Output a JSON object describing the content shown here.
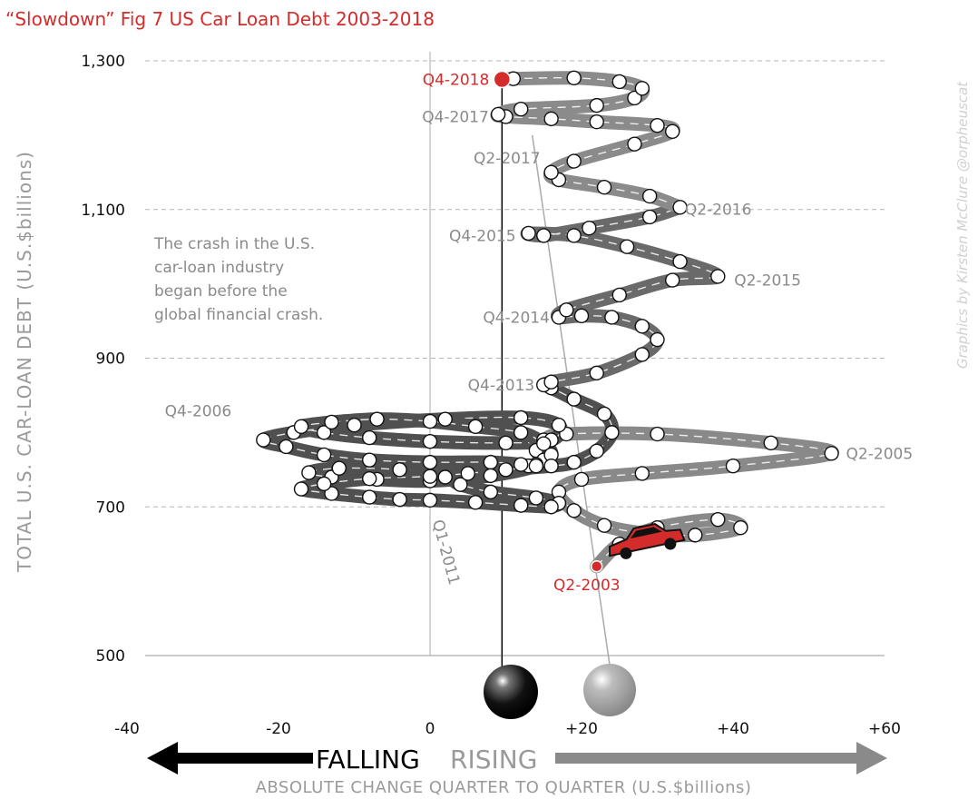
{
  "chart_data": {
    "type": "line",
    "title": "“Slowdown” Fig 7 US Car Loan Debt 2003-2018",
    "xlabel": "ABSOLUTE CHANGE QUARTER TO QUARTER (U.S.$billions)",
    "ylabel": "TOTAL U.S. CAR-LOAN  DEBT (U.S.$billions)",
    "xlim": [
      -40,
      60
    ],
    "ylim": [
      500,
      1300
    ],
    "x_ticks": [
      "-40",
      "-20",
      "0",
      "+20",
      "+40",
      "+60"
    ],
    "y_ticks": [
      "500",
      "700",
      "900",
      "1,100",
      "1,300"
    ],
    "direction_labels": {
      "falling": "FALLING",
      "rising": "RISING"
    },
    "annotation": [
      "The crash in the U.S.",
      "car-loan industry",
      "began before the",
      "global financial crash."
    ],
    "credit": "Graphics by Kirsten McClure @orpheuscat",
    "point_labels": [
      {
        "label": "Q2-2003",
        "x": 22,
        "y": 620,
        "color": "red"
      },
      {
        "label": "Q2-2005",
        "x": 53,
        "y": 772
      },
      {
        "label": "Q4-2006",
        "x": -25,
        "y": 800
      },
      {
        "label": "Q1-2011",
        "x": 2,
        "y": 705
      },
      {
        "label": "Q4-2013",
        "x": 15,
        "y": 864
      },
      {
        "label": "Q4-2014",
        "x": 17,
        "y": 955
      },
      {
        "label": "Q2-2015",
        "x": 38,
        "y": 1005
      },
      {
        "label": "Q4-2015",
        "x": 13,
        "y": 1065
      },
      {
        "label": "Q2-2016",
        "x": 31,
        "y": 1103
      },
      {
        "label": "Q2-2017",
        "x": 16,
        "y": 1167
      },
      {
        "label": "Q4-2017",
        "x": 8,
        "y": 1225
      },
      {
        "label": "Q4-2018",
        "x": 9.5,
        "y": 1275,
        "color": "red"
      }
    ],
    "series": [
      {
        "x": [
          22,
          25,
          30,
          38,
          41,
          35,
          28,
          23,
          19,
          17,
          20,
          28,
          40,
          53,
          45,
          30,
          18,
          15,
          14,
          15,
          14,
          13,
          12,
          8,
          0,
          -8,
          -14,
          -19,
          -22,
          -18,
          -10,
          2,
          12,
          17,
          16,
          10,
          0,
          -8,
          -14,
          -17,
          -13,
          -7,
          0,
          6,
          12,
          15,
          16,
          14,
          8,
          0,
          -7,
          -13,
          -16,
          -12,
          -4,
          2,
          4,
          8,
          14,
          17,
          16,
          12,
          6,
          0,
          -4,
          -8,
          -13,
          -17,
          -14,
          -8,
          0,
          5,
          10,
          16,
          19,
          22,
          24,
          23,
          19,
          16,
          15,
          16,
          22,
          28,
          30,
          28,
          24,
          20,
          17,
          18,
          25,
          32,
          38,
          33,
          26,
          19,
          13,
          15,
          21,
          29,
          33,
          29,
          23,
          17,
          16,
          19,
          27,
          32,
          30,
          22,
          16,
          10,
          9,
          12,
          22,
          27,
          28,
          25,
          19,
          11,
          9.5
        ],
        "y": [
          620,
          650,
          672,
          683,
          672,
          662,
          665,
          675,
          695,
          720,
          737,
          745,
          755,
          772,
          786,
          798,
          798,
          790,
          776,
          763,
          757,
          755,
          757,
          760,
          760,
          763,
          770,
          781,
          790,
          800,
          810,
          818,
          820,
          810,
          790,
          786,
          788,
          793,
          800,
          808,
          814,
          818,
          815,
          808,
          800,
          785,
          770,
          755,
          742,
          735,
          737,
          740,
          746,
          752,
          750,
          740,
          730,
          720,
          712,
          705,
          700,
          702,
          706,
          709,
          710,
          713,
          718,
          724,
          731,
          738,
          741,
          745,
          750,
          755,
          760,
          775,
          800,
          825,
          845,
          860,
          864,
          868,
          880,
          905,
          925,
          943,
          955,
          957,
          955,
          965,
          985,
          1005,
          1010,
          1030,
          1050,
          1065,
          1068,
          1065,
          1075,
          1090,
          1103,
          1118,
          1130,
          1140,
          1150,
          1165,
          1188,
          1205,
          1213,
          1218,
          1222,
          1225,
          1228,
          1235,
          1240,
          1250,
          1263,
          1272,
          1277,
          1276,
          1275
        ]
      }
    ]
  }
}
